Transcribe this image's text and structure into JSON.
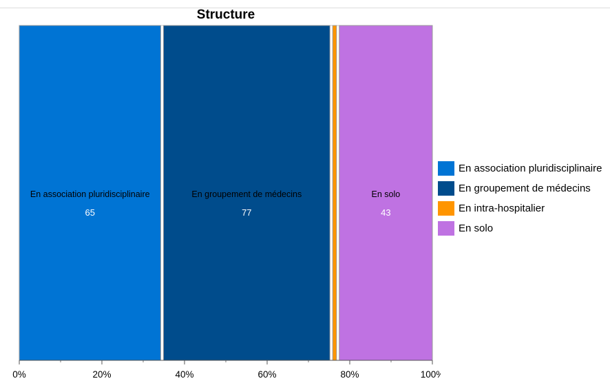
{
  "chart_data": {
    "type": "bar",
    "title": "Structure",
    "stacking": "100% mosaic",
    "x_ticks": [
      "0%",
      "20%",
      "40%",
      "60%",
      "80%",
      "100%"
    ],
    "xlim": [
      0,
      100
    ],
    "legend_position": "right",
    "categories": [
      "En association pluridisciplinaire",
      "En groupement de médecins",
      "En intra-hospitalier",
      "En solo"
    ],
    "values": [
      65,
      77,
      3,
      43
    ],
    "show_value_label": [
      true,
      true,
      false,
      true
    ],
    "colors": [
      "#0074d4",
      "#004c8c",
      "#ff9500",
      "#bf72e2"
    ],
    "label_colors": [
      "#ffffff",
      "#ffffff",
      "#ffffff",
      "#ffffff"
    ],
    "name_label_color": "#000000"
  }
}
